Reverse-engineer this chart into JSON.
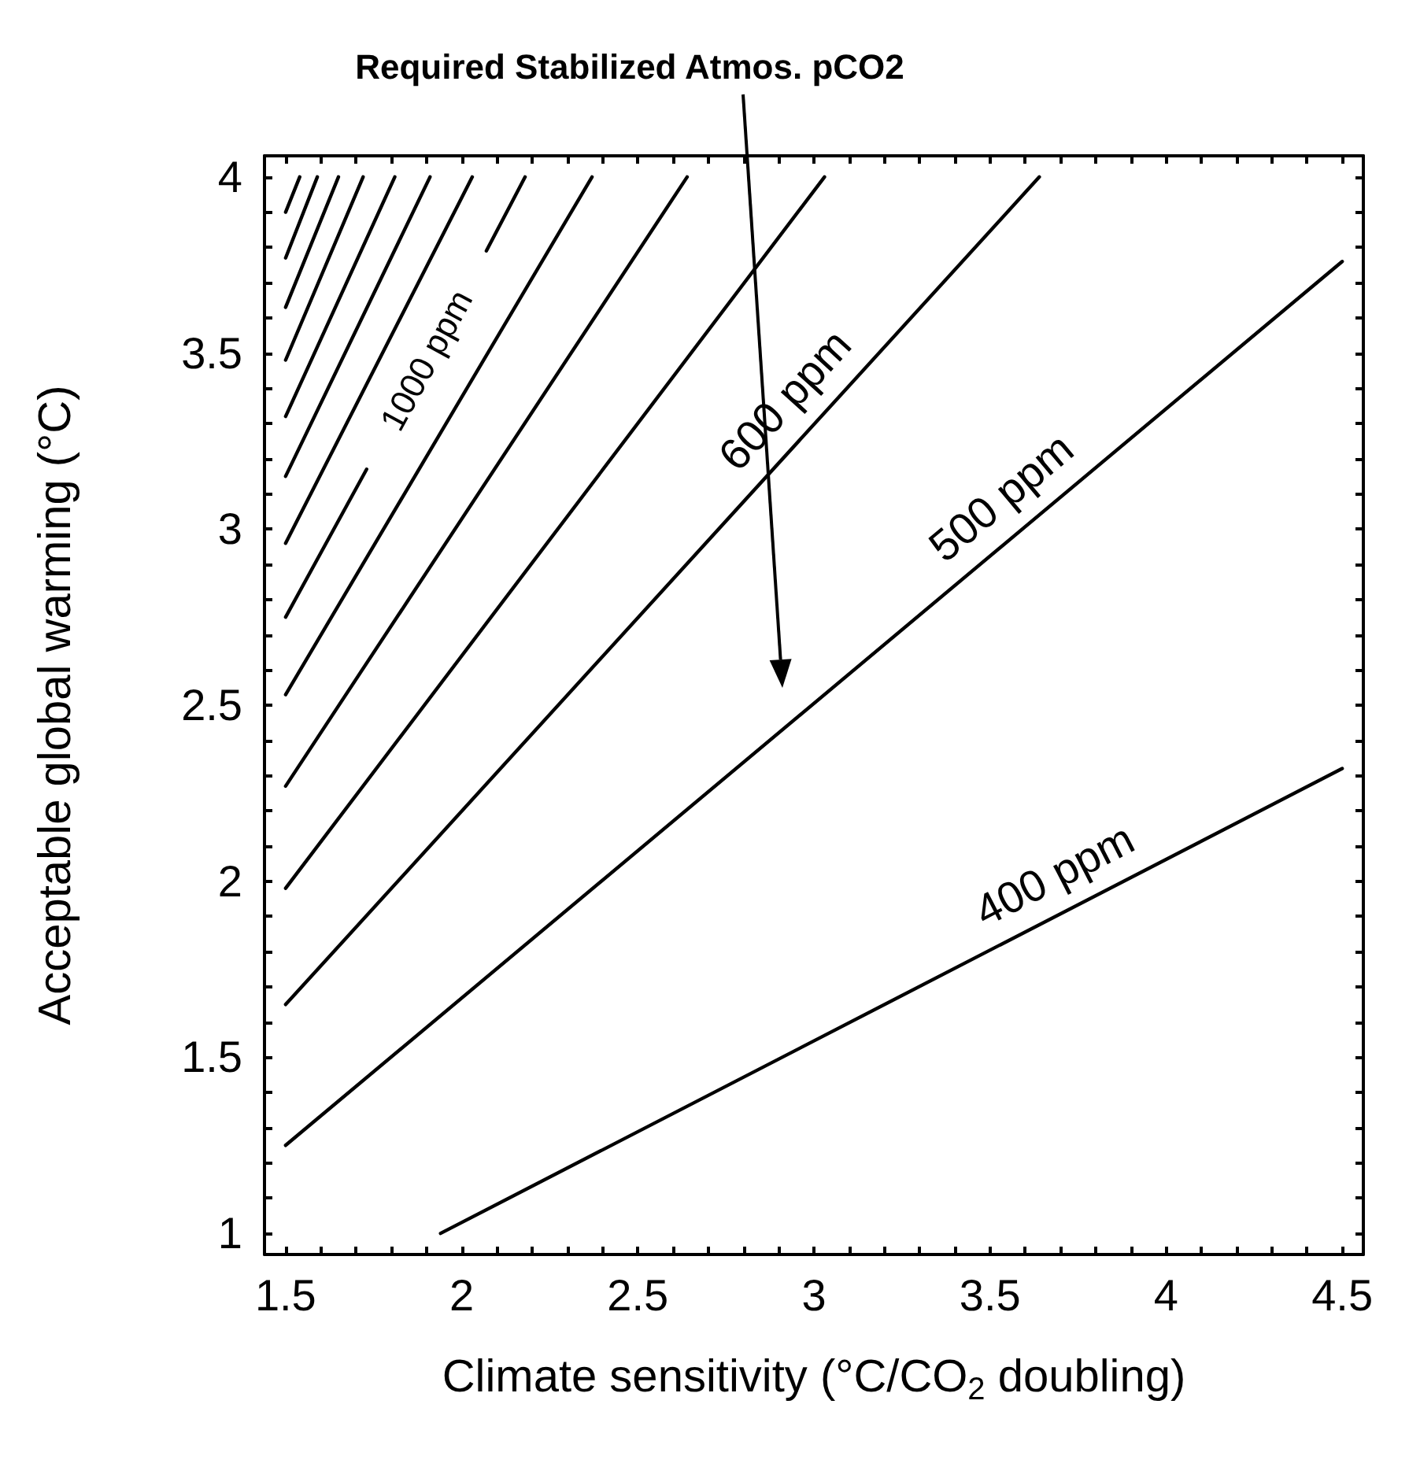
{
  "chart_data": {
    "type": "line",
    "xlabel": "Climate sensitivity (°C/CO$_{2}$ doubling)",
    "ylabel": "Acceptable global warming (°C)",
    "annotations": [
      "Required Stabilized Atmos. pCO2"
    ],
    "xlim": [
      1.44,
      4.56
    ],
    "ylim": [
      0.94,
      4.06
    ],
    "xticks": [
      1.5,
      2,
      2.5,
      3,
      3.5,
      4,
      4.5
    ],
    "yticks": [
      1,
      1.5,
      2,
      2.5,
      3,
      3.5,
      4
    ],
    "grid": false,
    "legend": false,
    "series": [
      {
        "name": "400 ppm",
        "color": "#000000",
        "x": [
          1.94,
          4.5
        ],
        "values": [
          1.0,
          2.32
        ]
      },
      {
        "name": "500 ppm",
        "color": "#000000",
        "x": [
          1.5,
          4.5
        ],
        "values": [
          1.25,
          3.76
        ]
      },
      {
        "name": "600 ppm",
        "color": "#000000",
        "x": [
          1.5,
          3.64
        ],
        "values": [
          1.65,
          4.0
        ]
      },
      {
        "color": "#000000",
        "x": [
          1.5,
          3.03
        ],
        "values": [
          1.98,
          4.0
        ]
      },
      {
        "color": "#000000",
        "x": [
          1.5,
          2.64
        ],
        "values": [
          2.27,
          4.0
        ]
      },
      {
        "color": "#000000",
        "x": [
          1.5,
          2.37
        ],
        "values": [
          2.53,
          4.0
        ]
      },
      {
        "name": "1000 ppm",
        "color": "#000000",
        "x": [
          1.5,
          1.73,
          1.9,
          2.07,
          2.18
        ],
        "values": [
          2.75,
          3.17,
          null,
          3.79,
          4.0
        ]
      },
      {
        "color": "#000000",
        "x": [
          1.5,
          2.03
        ],
        "values": [
          2.96,
          4.0
        ]
      },
      {
        "color": "#000000",
        "x": [
          1.5,
          1.91
        ],
        "values": [
          3.15,
          4.0
        ]
      },
      {
        "color": "#000000",
        "x": [
          1.5,
          1.81
        ],
        "values": [
          3.32,
          4.0
        ]
      },
      {
        "color": "#000000",
        "x": [
          1.5,
          1.72
        ],
        "values": [
          3.48,
          4.0
        ]
      },
      {
        "color": "#000000",
        "x": [
          1.5,
          1.65
        ],
        "values": [
          3.63,
          4.0
        ]
      },
      {
        "color": "#000000",
        "x": [
          1.5,
          1.59
        ],
        "values": [
          3.77,
          4.0
        ]
      },
      {
        "color": "#000000",
        "x": [
          1.5,
          1.54
        ],
        "values": [
          3.9,
          4.0
        ]
      }
    ]
  }
}
